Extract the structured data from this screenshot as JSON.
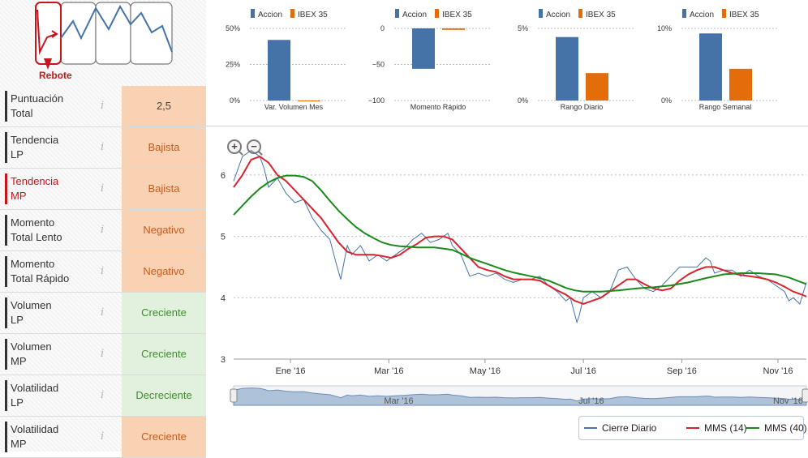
{
  "pattern": {
    "label": "Rebote"
  },
  "indicators": [
    {
      "label": "Puntuación\nTotal",
      "value": "2,5",
      "tone": "neutral",
      "active": false
    },
    {
      "label": "Tendencia\nLP",
      "value": "Bajista",
      "tone": "neg",
      "active": false
    },
    {
      "label": "Tendencia\nMP",
      "value": "Bajista",
      "tone": "neg",
      "active": true
    },
    {
      "label": "Momento\nTotal Lento",
      "value": "Negativo",
      "tone": "neg",
      "active": false
    },
    {
      "label": "Momento\nTotal Rápido",
      "value": "Negativo",
      "tone": "neg",
      "active": false
    },
    {
      "label": "Volumen\nLP",
      "value": "Creciente",
      "tone": "pos",
      "active": false
    },
    {
      "label": "Volumen\nMP",
      "value": "Creciente",
      "tone": "pos",
      "active": false
    },
    {
      "label": "Volatilidad\nLP",
      "value": "Decreciente",
      "tone": "pos",
      "active": false
    },
    {
      "label": "Volatilidad\nMP",
      "value": "Creciente",
      "tone": "neg",
      "active": false
    }
  ],
  "info_icon": "i",
  "colors": {
    "accion": "#4572a7",
    "ibex": "#e46c0a",
    "cierre": "#4572a7",
    "mms14": "#d9232d",
    "mms40": "#1a8a1a"
  },
  "mini_charts": [
    {
      "xlabel": "Var. Volumen Mes",
      "ticks": [
        "50%",
        "25%",
        "0%"
      ],
      "ylim": [
        0,
        50
      ],
      "values": {
        "accion": 42,
        "ibex": 0
      }
    },
    {
      "xlabel": "Momento Rápido",
      "ticks": [
        "0",
        "−50",
        "−100"
      ],
      "ylim": [
        -100,
        0
      ],
      "values": {
        "accion": -56,
        "ibex": -2
      }
    },
    {
      "xlabel": "Rango Diario",
      "ticks": [
        "5%",
        "0%"
      ],
      "ylim": [
        0,
        5
      ],
      "values": {
        "accion": 4.4,
        "ibex": 1.9
      }
    },
    {
      "xlabel": "Rango Semanal",
      "ticks": [
        "10%",
        "0%"
      ],
      "ylim": [
        0,
        10
      ],
      "values": {
        "accion": 9.3,
        "ibex": 4.4
      }
    }
  ],
  "mini_legend": {
    "accion": "Accion",
    "ibex": "IBEX 35"
  },
  "chart_data": {
    "type": "line",
    "ylim": [
      3,
      6.5
    ],
    "yticks": [
      3,
      4,
      5,
      6
    ],
    "xticks": [
      {
        "label": "Ene '16",
        "t": 0.13
      },
      {
        "label": "Mar '16",
        "t": 0.355
      },
      {
        "label": "May '16",
        "t": 0.575
      },
      {
        "label": "Jul '16",
        "t": 0.8
      },
      {
        "label": "Sep '16",
        "t": 1.025
      },
      {
        "label": "Nov '16",
        "t": 1.245
      }
    ],
    "navigator_labels": [
      {
        "label": "Mar '16",
        "t": 0.355
      },
      {
        "label": "Jul '16",
        "t": 0.8
      },
      {
        "label": "Nov '16",
        "t": 1.245
      }
    ],
    "series": [
      {
        "name": "Cierre Diario",
        "key": "cierre",
        "points": [
          [
            0.0,
            5.9
          ],
          [
            0.02,
            6.3
          ],
          [
            0.04,
            6.4
          ],
          [
            0.06,
            6.3
          ],
          [
            0.07,
            6.1
          ],
          [
            0.08,
            5.8
          ],
          [
            0.1,
            5.95
          ],
          [
            0.12,
            5.7
          ],
          [
            0.14,
            5.55
          ],
          [
            0.16,
            5.6
          ],
          [
            0.18,
            5.3
          ],
          [
            0.2,
            5.1
          ],
          [
            0.22,
            4.95
          ],
          [
            0.235,
            4.55
          ],
          [
            0.245,
            4.3
          ],
          [
            0.26,
            4.85
          ],
          [
            0.27,
            4.7
          ],
          [
            0.29,
            4.85
          ],
          [
            0.31,
            4.6
          ],
          [
            0.33,
            4.7
          ],
          [
            0.35,
            4.6
          ],
          [
            0.37,
            4.7
          ],
          [
            0.39,
            4.8
          ],
          [
            0.41,
            4.95
          ],
          [
            0.43,
            5.05
          ],
          [
            0.45,
            4.9
          ],
          [
            0.47,
            4.95
          ],
          [
            0.49,
            5.05
          ],
          [
            0.5,
            4.85
          ],
          [
            0.52,
            4.7
          ],
          [
            0.54,
            4.35
          ],
          [
            0.56,
            4.4
          ],
          [
            0.58,
            4.35
          ],
          [
            0.6,
            4.4
          ],
          [
            0.62,
            4.3
          ],
          [
            0.64,
            4.25
          ],
          [
            0.66,
            4.3
          ],
          [
            0.68,
            4.3
          ],
          [
            0.7,
            4.35
          ],
          [
            0.72,
            4.2
          ],
          [
            0.74,
            4.1
          ],
          [
            0.76,
            3.95
          ],
          [
            0.77,
            4.0
          ],
          [
            0.785,
            3.6
          ],
          [
            0.79,
            3.7
          ],
          [
            0.8,
            4.0
          ],
          [
            0.82,
            4.1
          ],
          [
            0.84,
            4.0
          ],
          [
            0.86,
            4.1
          ],
          [
            0.88,
            4.45
          ],
          [
            0.9,
            4.5
          ],
          [
            0.92,
            4.3
          ],
          [
            0.94,
            4.15
          ],
          [
            0.96,
            4.1
          ],
          [
            0.98,
            4.2
          ],
          [
            1.0,
            4.35
          ],
          [
            1.02,
            4.5
          ],
          [
            1.04,
            4.5
          ],
          [
            1.06,
            4.5
          ],
          [
            1.08,
            4.65
          ],
          [
            1.09,
            4.6
          ],
          [
            1.1,
            4.4
          ],
          [
            1.12,
            4.45
          ],
          [
            1.14,
            4.45
          ],
          [
            1.16,
            4.35
          ],
          [
            1.18,
            4.45
          ],
          [
            1.2,
            4.35
          ],
          [
            1.22,
            4.3
          ],
          [
            1.24,
            4.2
          ],
          [
            1.26,
            4.1
          ],
          [
            1.27,
            3.95
          ],
          [
            1.28,
            4.0
          ],
          [
            1.295,
            3.9
          ],
          [
            1.31,
            4.25
          ]
        ]
      },
      {
        "name": "MMS (14)",
        "key": "mms14",
        "points": [
          [
            0.0,
            5.8
          ],
          [
            0.02,
            6.0
          ],
          [
            0.04,
            6.25
          ],
          [
            0.06,
            6.3
          ],
          [
            0.08,
            6.2
          ],
          [
            0.1,
            6.0
          ],
          [
            0.12,
            5.9
          ],
          [
            0.14,
            5.75
          ],
          [
            0.16,
            5.6
          ],
          [
            0.18,
            5.45
          ],
          [
            0.2,
            5.3
          ],
          [
            0.22,
            5.1
          ],
          [
            0.24,
            4.9
          ],
          [
            0.26,
            4.75
          ],
          [
            0.28,
            4.7
          ],
          [
            0.3,
            4.7
          ],
          [
            0.32,
            4.7
          ],
          [
            0.34,
            4.68
          ],
          [
            0.36,
            4.65
          ],
          [
            0.38,
            4.7
          ],
          [
            0.4,
            4.8
          ],
          [
            0.42,
            4.88
          ],
          [
            0.44,
            4.98
          ],
          [
            0.46,
            5.0
          ],
          [
            0.48,
            5.0
          ],
          [
            0.5,
            4.95
          ],
          [
            0.52,
            4.8
          ],
          [
            0.54,
            4.65
          ],
          [
            0.56,
            4.5
          ],
          [
            0.58,
            4.45
          ],
          [
            0.6,
            4.42
          ],
          [
            0.62,
            4.35
          ],
          [
            0.64,
            4.3
          ],
          [
            0.66,
            4.3
          ],
          [
            0.68,
            4.3
          ],
          [
            0.7,
            4.28
          ],
          [
            0.72,
            4.2
          ],
          [
            0.74,
            4.12
          ],
          [
            0.76,
            4.05
          ],
          [
            0.78,
            3.95
          ],
          [
            0.8,
            3.9
          ],
          [
            0.82,
            3.95
          ],
          [
            0.84,
            4.0
          ],
          [
            0.86,
            4.1
          ],
          [
            0.88,
            4.2
          ],
          [
            0.9,
            4.3
          ],
          [
            0.92,
            4.3
          ],
          [
            0.94,
            4.22
          ],
          [
            0.96,
            4.15
          ],
          [
            0.98,
            4.12
          ],
          [
            1.0,
            4.15
          ],
          [
            1.02,
            4.28
          ],
          [
            1.04,
            4.38
          ],
          [
            1.06,
            4.45
          ],
          [
            1.08,
            4.5
          ],
          [
            1.1,
            4.5
          ],
          [
            1.12,
            4.45
          ],
          [
            1.14,
            4.4
          ],
          [
            1.16,
            4.37
          ],
          [
            1.18,
            4.35
          ],
          [
            1.2,
            4.33
          ],
          [
            1.22,
            4.3
          ],
          [
            1.24,
            4.25
          ],
          [
            1.26,
            4.18
          ],
          [
            1.28,
            4.1
          ],
          [
            1.3,
            4.05
          ],
          [
            1.31,
            4.02
          ]
        ]
      },
      {
        "name": "MMS (40)",
        "key": "mms40",
        "points": [
          [
            0.0,
            5.35
          ],
          [
            0.02,
            5.5
          ],
          [
            0.04,
            5.65
          ],
          [
            0.06,
            5.78
          ],
          [
            0.08,
            5.88
          ],
          [
            0.1,
            5.95
          ],
          [
            0.12,
            5.99
          ],
          [
            0.14,
            5.99
          ],
          [
            0.16,
            5.97
          ],
          [
            0.18,
            5.9
          ],
          [
            0.2,
            5.75
          ],
          [
            0.22,
            5.58
          ],
          [
            0.24,
            5.42
          ],
          [
            0.26,
            5.28
          ],
          [
            0.28,
            5.15
          ],
          [
            0.3,
            5.05
          ],
          [
            0.32,
            4.97
          ],
          [
            0.34,
            4.9
          ],
          [
            0.36,
            4.86
          ],
          [
            0.38,
            4.84
          ],
          [
            0.4,
            4.83
          ],
          [
            0.42,
            4.82
          ],
          [
            0.44,
            4.82
          ],
          [
            0.46,
            4.82
          ],
          [
            0.48,
            4.8
          ],
          [
            0.5,
            4.78
          ],
          [
            0.52,
            4.72
          ],
          [
            0.54,
            4.65
          ],
          [
            0.56,
            4.6
          ],
          [
            0.58,
            4.55
          ],
          [
            0.6,
            4.5
          ],
          [
            0.62,
            4.45
          ],
          [
            0.64,
            4.41
          ],
          [
            0.66,
            4.38
          ],
          [
            0.68,
            4.35
          ],
          [
            0.7,
            4.32
          ],
          [
            0.72,
            4.28
          ],
          [
            0.74,
            4.22
          ],
          [
            0.76,
            4.16
          ],
          [
            0.78,
            4.12
          ],
          [
            0.8,
            4.1
          ],
          [
            0.84,
            4.1
          ],
          [
            0.88,
            4.12
          ],
          [
            0.92,
            4.15
          ],
          [
            0.96,
            4.17
          ],
          [
            1.0,
            4.2
          ],
          [
            1.04,
            4.25
          ],
          [
            1.08,
            4.32
          ],
          [
            1.12,
            4.38
          ],
          [
            1.16,
            4.4
          ],
          [
            1.2,
            4.4
          ],
          [
            1.24,
            4.38
          ],
          [
            1.27,
            4.33
          ],
          [
            1.3,
            4.25
          ],
          [
            1.31,
            4.22
          ]
        ]
      }
    ]
  }
}
